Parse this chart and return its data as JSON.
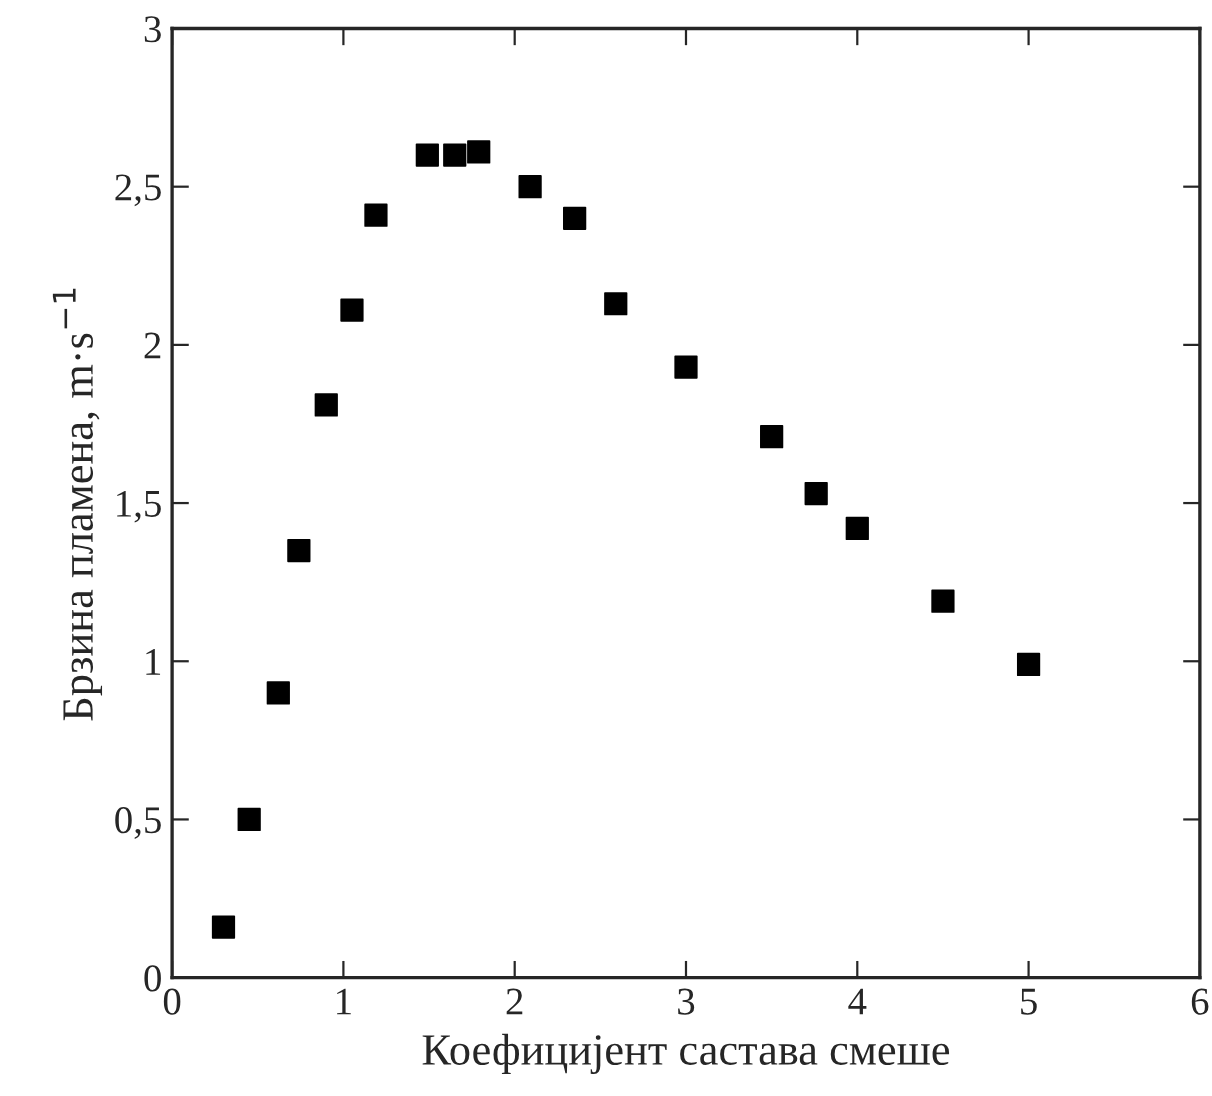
{
  "chart_data": {
    "type": "scatter",
    "xlabel": "Коефицијент састава смеше",
    "ylabel": "Брзина пламена, m·s$^{−1}$",
    "x": [
      0.3,
      0.45,
      0.62,
      0.74,
      0.9,
      1.05,
      1.19,
      1.49,
      1.65,
      1.79,
      2.09,
      2.35,
      2.59,
      3.0,
      3.5,
      3.76,
      4.0,
      4.5,
      5.0
    ],
    "series": [
      {
        "color": "#000000",
        "values": [
          0.16,
          0.5,
          0.9,
          1.35,
          1.81,
          2.11,
          2.41,
          2.6,
          2.6,
          2.61,
          2.5,
          2.4,
          2.13,
          1.93,
          1.71,
          1.53,
          1.42,
          1.19,
          0.99
        ]
      }
    ],
    "marker": "square",
    "grid": false,
    "xlim": [
      0,
      6
    ],
    "xticks": [
      0,
      1,
      2,
      3,
      4,
      5,
      6
    ],
    "ylim": [
      0,
      3
    ],
    "yticks": [
      0,
      {
        "value": 0.5,
        "label": "0,5"
      },
      1,
      {
        "value": 1.5,
        "label": "1,5"
      },
      2,
      {
        "value": 2.5,
        "label": "2,5"
      },
      3
    ]
  }
}
